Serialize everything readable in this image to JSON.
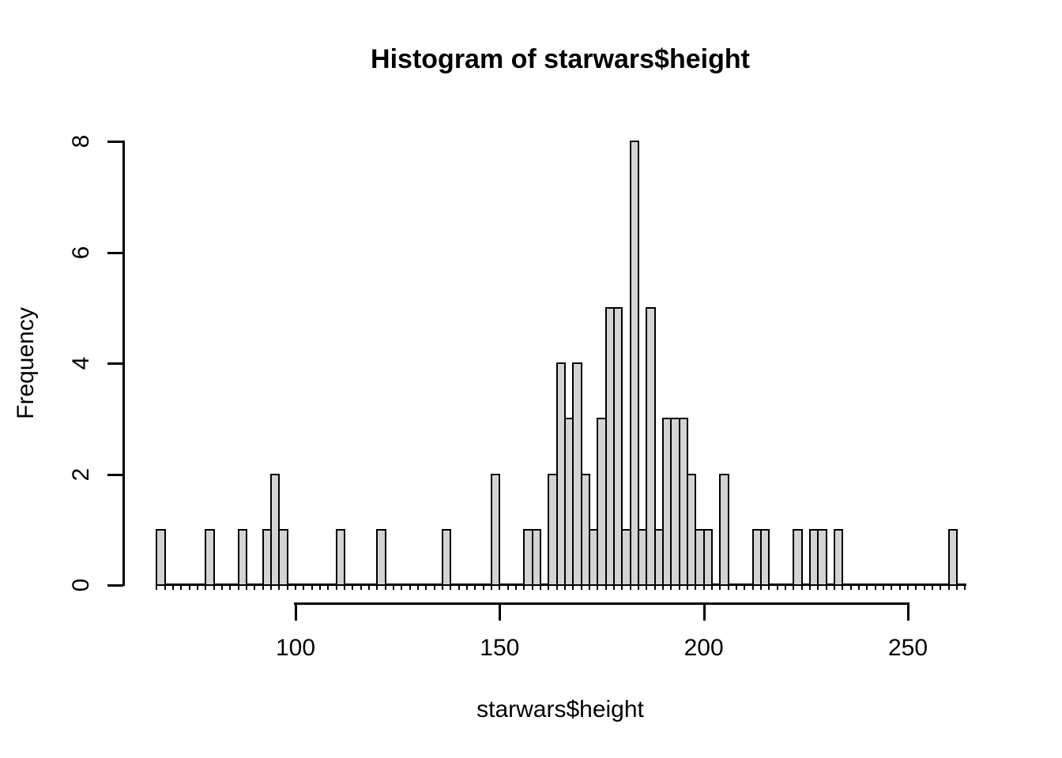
{
  "title": "Histogram of starwars$height",
  "x_axis": {
    "label": "starwars$height",
    "tick_labels": [
      "100",
      "150",
      "200",
      "250"
    ],
    "tick_values": [
      100,
      150,
      200,
      250
    ]
  },
  "y_axis": {
    "label": "Frequency",
    "tick_labels": [
      "0",
      "2",
      "4",
      "6",
      "8"
    ],
    "tick_values": [
      0,
      2,
      4,
      6,
      8
    ]
  },
  "colors": {
    "background": "#ffffff",
    "bar_fill": "#d3d3d3",
    "bar_border": "#000000",
    "axis": "#000000",
    "text": "#000000"
  },
  "chart_data": {
    "type": "bar",
    "subtype": "histogram",
    "title": "Histogram of starwars$height",
    "xlabel": "starwars$height",
    "ylabel": "Frequency",
    "bin_start": 66,
    "bin_width": 2,
    "counts": [
      1,
      0,
      0,
      0,
      0,
      0,
      1,
      0,
      0,
      0,
      1,
      0,
      0,
      1,
      2,
      1,
      0,
      0,
      0,
      0,
      0,
      0,
      1,
      0,
      0,
      0,
      0,
      1,
      0,
      0,
      0,
      0,
      0,
      0,
      0,
      1,
      0,
      0,
      0,
      0,
      0,
      2,
      0,
      0,
      0,
      1,
      1,
      0,
      2,
      4,
      3,
      4,
      2,
      1,
      3,
      5,
      5,
      1,
      8,
      1,
      5,
      1,
      3,
      3,
      3,
      2,
      1,
      1,
      0,
      2,
      0,
      0,
      0,
      1,
      1,
      0,
      0,
      0,
      1,
      0,
      1,
      1,
      0,
      1,
      0,
      0,
      0,
      0,
      0,
      0,
      0,
      0,
      0,
      0,
      0,
      0,
      0,
      1
    ],
    "xlim": [
      66,
      264
    ],
    "ylim": [
      0,
      8
    ],
    "x_ticks": [
      100,
      150,
      200,
      250
    ],
    "y_ticks": [
      0,
      2,
      4,
      6,
      8
    ],
    "grid": false,
    "legend": false
  }
}
